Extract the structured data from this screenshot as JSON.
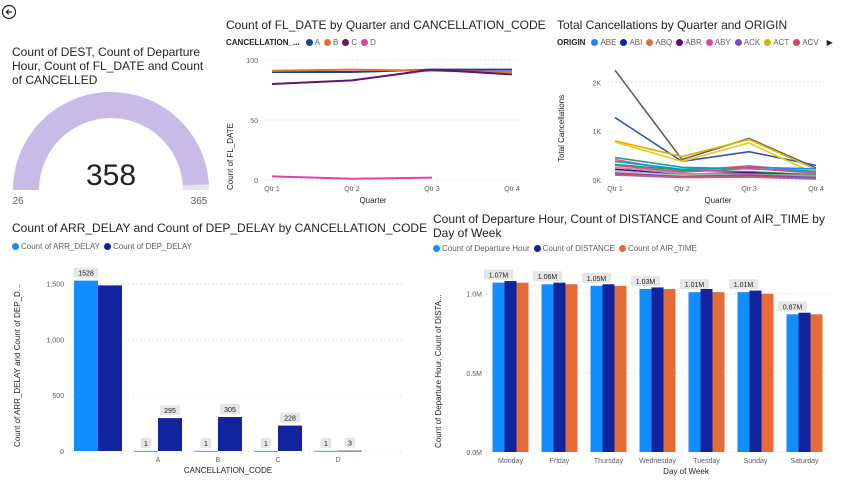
{
  "back_icon": "back-arrow-icon",
  "gauge": {
    "title": "Count of DEST, Count of Departure Hour, Count of FL_DATE and Count of CANCELLED",
    "value": "358",
    "min": "26",
    "max": "365",
    "value_num": 358,
    "min_num": 26,
    "max_num": 365,
    "color": "#c9bbe8"
  },
  "line1": {
    "title": "Count of FL_DATE by Quarter and CANCELLATION_CODE",
    "legend_title": "CANCELLATION_...",
    "legend": [
      {
        "name": "A",
        "color": "#1a3fa0"
      },
      {
        "name": "B",
        "color": "#e8712c"
      },
      {
        "name": "C",
        "color": "#6b0f70"
      },
      {
        "name": "D",
        "color": "#e042a8"
      }
    ],
    "ylabel": "Count of FL_DATE",
    "xlabel": "Quarter",
    "yticks": [
      "100",
      "50",
      "0"
    ]
  },
  "line2": {
    "title": "Total Cancellations by Quarter and ORIGIN",
    "legend_title": "ORIGIN",
    "legend": [
      {
        "name": "ABE",
        "color": "#118dff"
      },
      {
        "name": "ABI",
        "color": "#12239e"
      },
      {
        "name": "ABQ",
        "color": "#e66c37"
      },
      {
        "name": "ABR",
        "color": "#6b007b"
      },
      {
        "name": "ABY",
        "color": "#e044a7"
      },
      {
        "name": "ACK",
        "color": "#744ec2"
      },
      {
        "name": "ACT",
        "color": "#d9b300"
      },
      {
        "name": "ACV",
        "color": "#d64550"
      }
    ],
    "more_icon": "chevron-right-icon",
    "ylabel": "Total Cancellations",
    "xlabel": "Quarter",
    "yticks": [
      "2K",
      "1K",
      "0K"
    ]
  },
  "bar1": {
    "title": "Count of ARR_DELAY and Count of DEP_DELAY by CANCELLATION_CODE",
    "ylabel": "Count of ARR_DELAY and Count of DEP_D...",
    "xlabel": "CANCELLATION_CODE",
    "yticks": [
      "1,500",
      "1,000",
      "500",
      "0"
    ]
  },
  "bar2": {
    "title": "Count of Departure Hour, Count of DISTANCE and Count of AIR_TIME by Day of Week",
    "ylabel": "Count of Departure Hour, Count of DISTA...",
    "xlabel": "Day of Week",
    "yticks": [
      "1.0M",
      "0.5M",
      "0.0M"
    ]
  },
  "chart_data": [
    {
      "type": "gauge",
      "title": "Count of DEST, Count of Departure Hour, Count of FL_DATE and Count of CANCELLED",
      "value": 358,
      "min": 26,
      "max": 365
    },
    {
      "type": "line",
      "title": "Count of FL_DATE by Quarter and CANCELLATION_CODE",
      "x": [
        "Qtr 1",
        "Qtr 2",
        "Qtr 3",
        "Qtr 4"
      ],
      "xlabel": "Quarter",
      "ylabel": "Count of FL_DATE",
      "ylim": [
        0,
        100
      ],
      "series": [
        {
          "name": "A",
          "color": "#1a3fa0",
          "values": [
            90,
            90,
            92,
            92
          ]
        },
        {
          "name": "B",
          "color": "#e8712c",
          "values": [
            91,
            92,
            91,
            90
          ]
        },
        {
          "name": "C",
          "color": "#6b0f70",
          "values": [
            80,
            83,
            92,
            88
          ]
        },
        {
          "name": "D",
          "color": "#e042a8",
          "values": [
            3,
            1,
            2,
            null
          ]
        }
      ]
    },
    {
      "type": "line",
      "title": "Total Cancellations by Quarter and ORIGIN",
      "x": [
        "Qtr 1",
        "Qtr 2",
        "Qtr 3",
        "Qtr 4"
      ],
      "xlabel": "Quarter",
      "ylabel": "Total Cancellations",
      "ylim": [
        0,
        2500
      ],
      "series": [
        {
          "color": "#605e5c",
          "values": [
            2250,
            420,
            850,
            250
          ]
        },
        {
          "color": "#2f55c4",
          "values": [
            1280,
            380,
            580,
            300
          ]
        },
        {
          "color": "#d9b300",
          "values": [
            800,
            480,
            830,
            220
          ]
        },
        {
          "color": "#f2c80f",
          "values": [
            780,
            380,
            760,
            120
          ]
        },
        {
          "color": "#e66c37",
          "values": [
            420,
            180,
            290,
            170
          ]
        },
        {
          "color": "#118dff",
          "values": [
            380,
            220,
            260,
            230
          ]
        },
        {
          "color": "#12a39d",
          "values": [
            460,
            260,
            230,
            180
          ]
        },
        {
          "color": "#1aab40",
          "values": [
            320,
            200,
            170,
            110
          ]
        },
        {
          "color": "#e044a7",
          "values": [
            300,
            160,
            240,
            140
          ]
        },
        {
          "color": "#6b007b",
          "values": [
            220,
            120,
            150,
            80
          ]
        },
        {
          "color": "#9aa0a6",
          "values": [
            260,
            130,
            120,
            90
          ]
        },
        {
          "color": "#b0b4b8",
          "values": [
            180,
            100,
            90,
            60
          ]
        },
        {
          "color": "#c8cbce",
          "values": [
            150,
            80,
            70,
            40
          ]
        },
        {
          "color": "#744ec2",
          "values": [
            140,
            70,
            100,
            50
          ]
        },
        {
          "color": "#d64550",
          "values": [
            120,
            60,
            80,
            30
          ]
        },
        {
          "color": "#a66999",
          "values": [
            100,
            50,
            60,
            20
          ]
        }
      ]
    },
    {
      "type": "bar",
      "title": "Count of ARR_DELAY and Count of DEP_DELAY by CANCELLATION_CODE",
      "categories": [
        "",
        "A",
        "B",
        "C",
        "D"
      ],
      "xlabel": "CANCELLATION_CODE",
      "ylabel": "Count of ARR_DELAY and Count of DEP_D...",
      "ylim": [
        0,
        1650
      ],
      "series": [
        {
          "name": "Count of ARR_DELAY",
          "color": "#118dff",
          "values": [
            1528,
            1,
            1,
            1,
            1
          ],
          "labels": [
            "1528",
            "1",
            "1",
            "1",
            "1"
          ]
        },
        {
          "name": "Count of DEP_DELAY",
          "color": "#12239e",
          "values": [
            1485,
            295,
            305,
            228,
            3
          ],
          "labels": [
            "",
            "295",
            "305",
            "228",
            "3"
          ]
        }
      ]
    },
    {
      "type": "bar",
      "title": "Count of Departure Hour, Count of DISTANCE and Count of AIR_TIME by Day of Week",
      "categories": [
        "Monday",
        "Friday",
        "Thursday",
        "Wednesday",
        "Tuesday",
        "Sunday",
        "Saturday"
      ],
      "xlabel": "Day of Week",
      "ylabel": "Count of Departure Hour, Count of DISTA...",
      "ylim": [
        0,
        1.15
      ],
      "series": [
        {
          "name": "Count of Departure Hour",
          "color": "#118dff",
          "values": [
            1.07,
            1.06,
            1.05,
            1.03,
            1.01,
            1.01,
            0.87
          ],
          "labels": [
            "1.07M",
            "1.06M",
            "1.05M",
            "1.03M",
            "1.01M",
            "1.01M",
            "0.87M"
          ]
        },
        {
          "name": "Count of DISTANCE",
          "color": "#12239e",
          "values": [
            1.08,
            1.07,
            1.06,
            1.04,
            1.03,
            1.02,
            0.88
          ]
        },
        {
          "name": "Count of AIR_TIME",
          "color": "#e66c37",
          "values": [
            1.07,
            1.06,
            1.05,
            1.03,
            1.01,
            1.0,
            0.87
          ]
        }
      ]
    }
  ]
}
